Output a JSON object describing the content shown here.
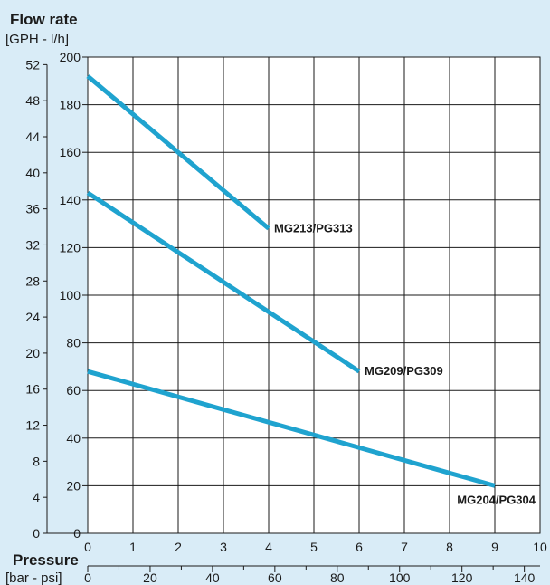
{
  "chart_data": {
    "type": "line",
    "title": "Flow rate",
    "ylabel_units": "[GPH - l/h]",
    "xlabel": "Pressure",
    "xlabel_units": "[bar - psi]",
    "x_bar_ticks": [
      "0",
      "1",
      "2",
      "3",
      "4",
      "5",
      "6",
      "7",
      "8",
      "9",
      "10"
    ],
    "x_psi_ticks": [
      "0",
      "20",
      "40",
      "60",
      "80",
      "100",
      "120",
      "140"
    ],
    "y_lph_ticks": [
      "0",
      "20",
      "40",
      "60",
      "80",
      "100",
      "120",
      "140",
      "160",
      "180",
      "200"
    ],
    "y_gph_ticks": [
      "0",
      "4",
      "8",
      "12",
      "16",
      "20",
      "24",
      "28",
      "32",
      "36",
      "40",
      "44",
      "48",
      "52"
    ],
    "xlim": [
      0,
      10
    ],
    "ylim": [
      0,
      200
    ],
    "grid": true,
    "line_color": "#1fa3cf",
    "series": [
      {
        "name": "MG213/PG313",
        "x": [
          0,
          4
        ],
        "y": [
          192,
          128
        ]
      },
      {
        "name": "MG209/PG309",
        "x": [
          0,
          6
        ],
        "y": [
          143,
          68
        ]
      },
      {
        "name": "MG204/PG304",
        "x": [
          0,
          9
        ],
        "y": [
          68,
          20
        ]
      }
    ]
  }
}
